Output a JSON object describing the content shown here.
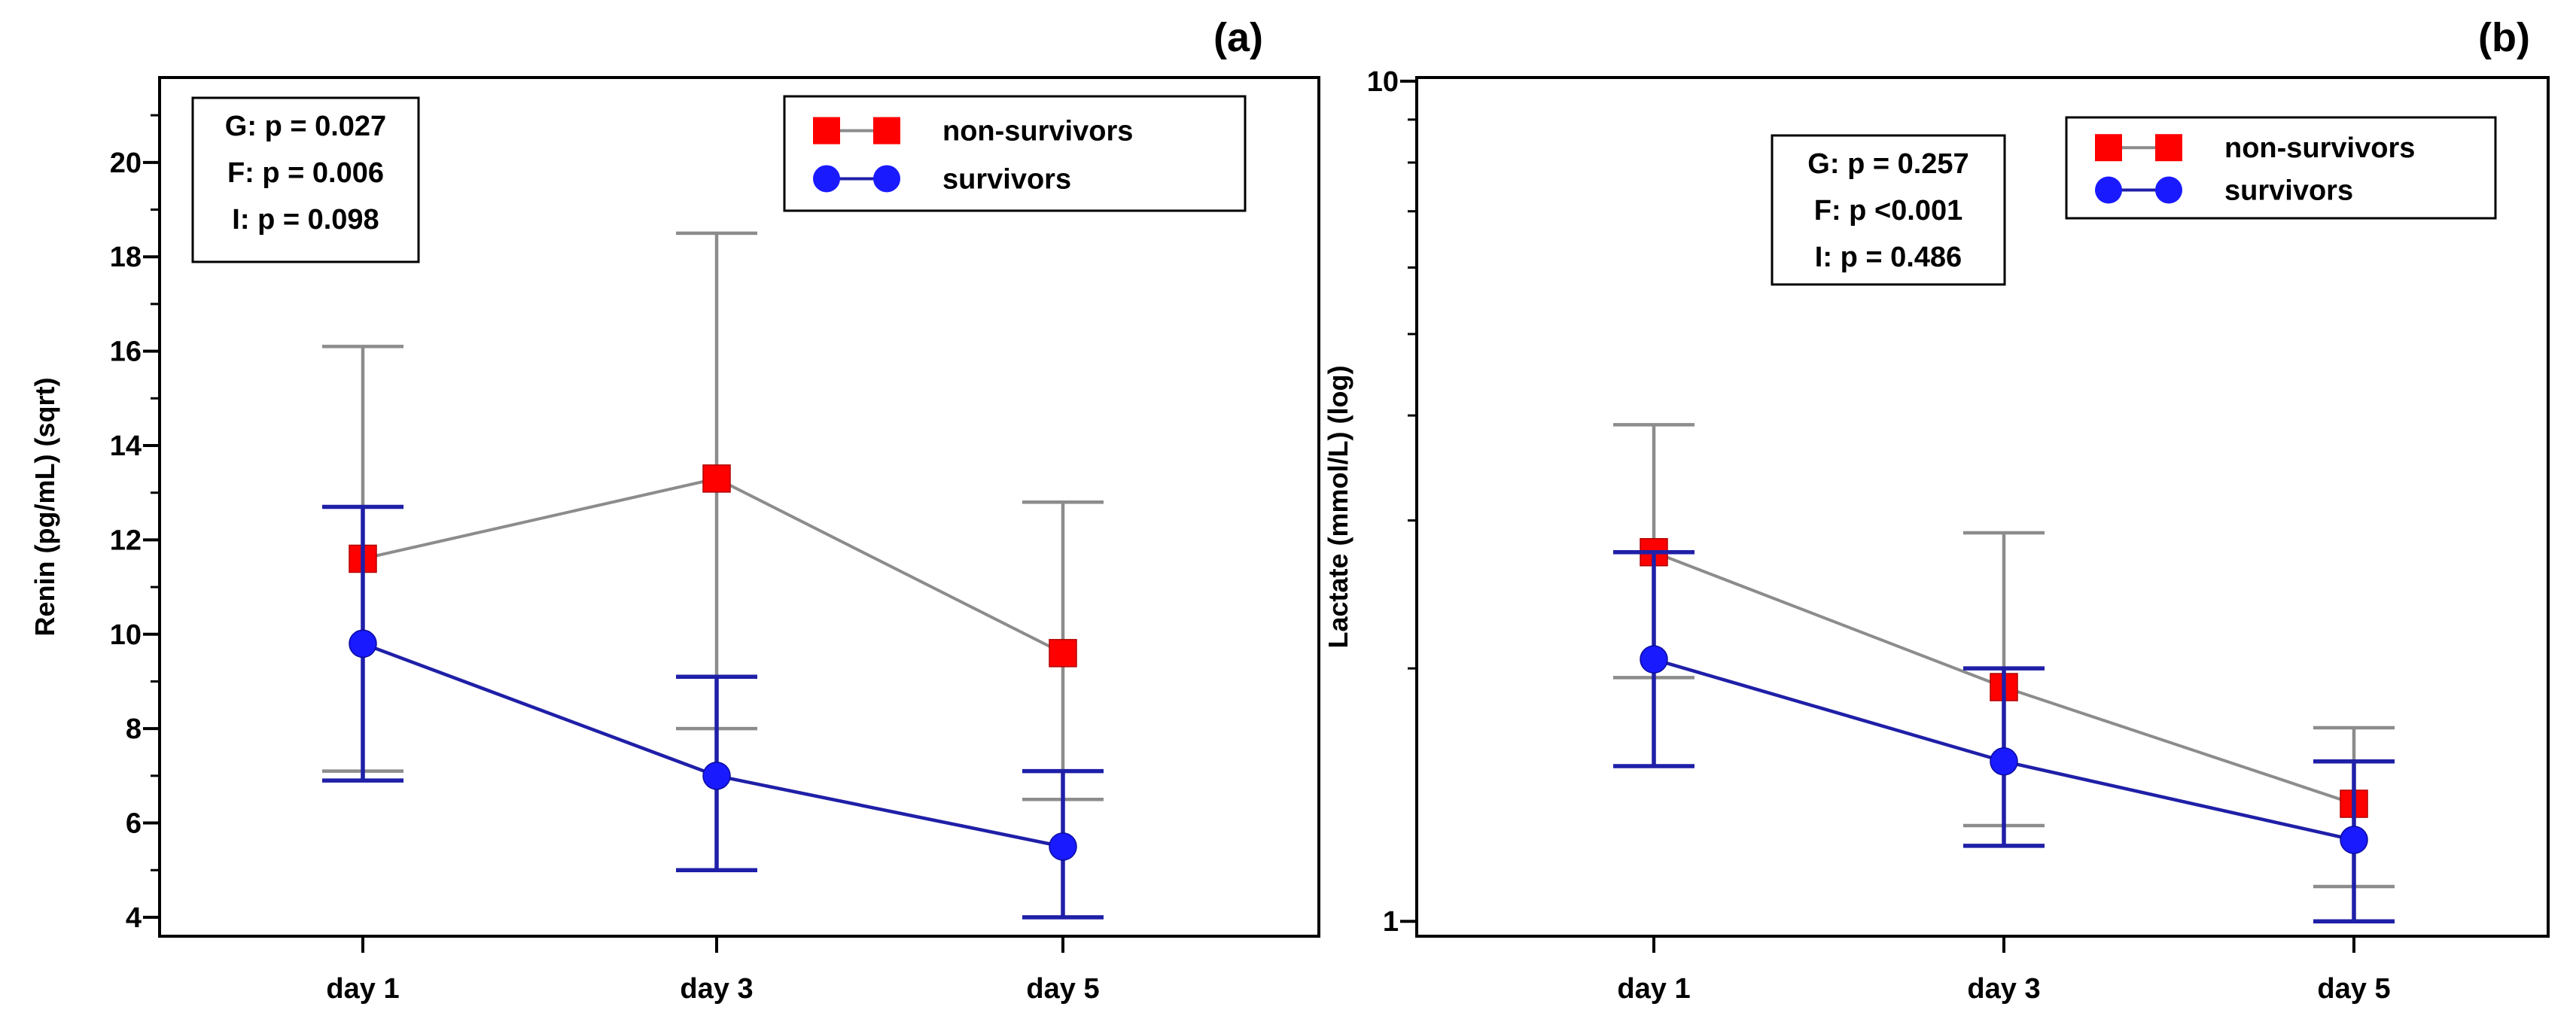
{
  "colors": {
    "nonsurv_marker": "#ff0000",
    "nonsurv_line": "#8c8c8c",
    "surv_marker": "#1a1aff",
    "surv_line": "#1f1fa8",
    "axis": "#000000"
  },
  "chart_data": [
    {
      "panel_label": "(a)",
      "type": "line",
      "scale": "sqrt",
      "ylabel": "Renin (pg/mL) (sqrt)",
      "ylim": [
        3.6,
        21.8
      ],
      "yticks": [
        4,
        6,
        8,
        10,
        12,
        14,
        16,
        18,
        20
      ],
      "yticklabels": [
        "4",
        "6",
        "8",
        "10",
        "12",
        "14",
        "16",
        "18",
        "20"
      ],
      "categories": [
        "day 1",
        "day 3",
        "day 5"
      ],
      "stats": [
        "G: p = 0.027",
        "F: p = 0.006",
        "I: p = 0.098"
      ],
      "legend": [
        "non-survivors",
        "survivors"
      ],
      "series": [
        {
          "name": "non-survivors",
          "values": [
            11.6,
            13.3,
            9.6
          ],
          "lower": [
            7.1,
            8.0,
            6.5
          ],
          "upper": [
            16.1,
            18.5,
            12.8
          ]
        },
        {
          "name": "survivors",
          "values": [
            9.8,
            7.0,
            5.5
          ],
          "lower": [
            6.9,
            5.0,
            4.0
          ],
          "upper": [
            12.7,
            9.1,
            7.1
          ]
        }
      ]
    },
    {
      "panel_label": "(b)",
      "type": "line",
      "scale": "log",
      "ylabel": "Lactate (mmol/L) (log)",
      "ylim": [
        0.96,
        10.1
      ],
      "yticks": [
        1,
        10
      ],
      "yticklabels": [
        "1",
        "10"
      ],
      "categories": [
        "day 1",
        "day 3",
        "day 5"
      ],
      "stats": [
        "G: p = 0.257",
        "F: p <0.001",
        "I: p = 0.486"
      ],
      "legend": [
        "non-survivors",
        "survivors"
      ],
      "series": [
        {
          "name": "non-survivors",
          "values": [
            2.75,
            1.9,
            1.38
          ],
          "lower": [
            1.95,
            1.3,
            1.1
          ],
          "upper": [
            3.9,
            2.9,
            1.7
          ]
        },
        {
          "name": "survivors",
          "values": [
            2.05,
            1.55,
            1.25
          ],
          "lower": [
            1.53,
            1.23,
            1.0
          ],
          "upper": [
            2.75,
            2.0,
            1.55
          ]
        }
      ]
    }
  ]
}
